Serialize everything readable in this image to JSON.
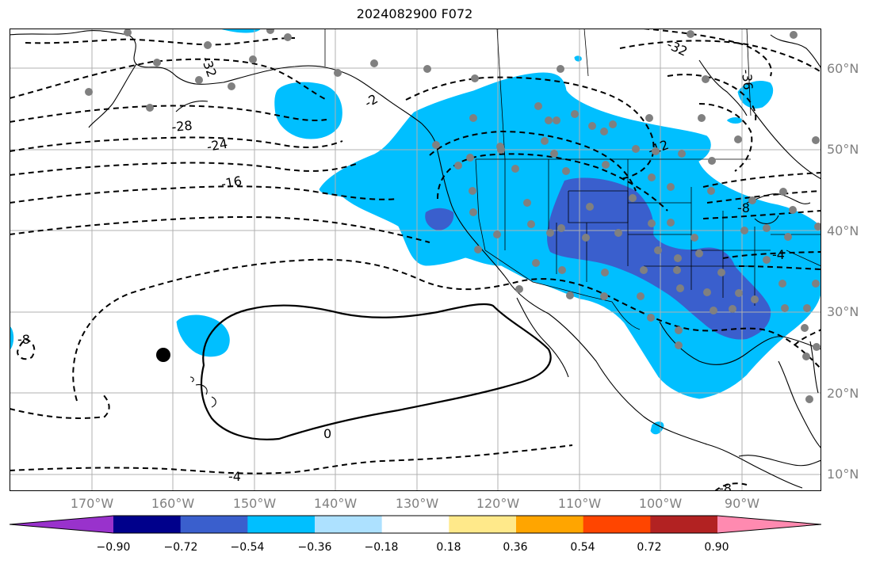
{
  "title": "2024082900 F072",
  "lat_labels": [
    "60°N",
    "50°N",
    "40°N",
    "30°N",
    "20°N",
    "10°N"
  ],
  "lon_labels": [
    "170°W",
    "160°W",
    "150°W",
    "140°W",
    "130°W",
    "120°W",
    "110°W",
    "100°W",
    "90°W"
  ],
  "contour_labels": [
    "-32",
    "-32",
    "-36",
    "-28",
    "-24",
    "-16",
    "-2",
    "-12",
    "-8",
    "-8",
    "-4",
    "-4",
    "0",
    "-8"
  ],
  "colorbar": {
    "labels": [
      "−0.90",
      "−0.72",
      "−0.54",
      "−0.36",
      "−0.18",
      "0.18",
      "0.36",
      "0.54",
      "0.72",
      "0.90"
    ],
    "colors": [
      "#9932CC",
      "#00008B",
      "#3A5FCD",
      "#00BFFF",
      "#ADE1FF",
      "#FFFFFF",
      "#FFE98A",
      "#FFA500",
      "#FF4500",
      "#B22222",
      "#FF8AB0"
    ]
  },
  "colors": {
    "light_blue_fill": "#00BFFF",
    "dark_blue_fill": "#3A5FCD",
    "station_dot": "#808080",
    "grid": "#B0B0B0"
  }
}
